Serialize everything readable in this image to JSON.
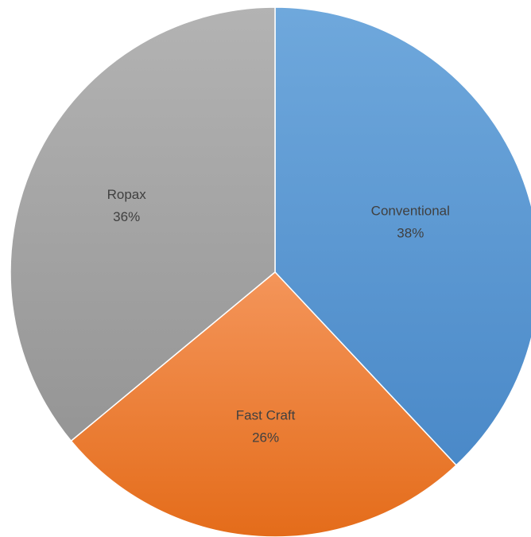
{
  "chart_data": {
    "type": "pie",
    "title": "",
    "legend": "none",
    "slices": [
      {
        "name": "Conventional",
        "value": 38,
        "label": "38%",
        "color": "#5b9bd5"
      },
      {
        "name": "Fast Craft",
        "value": 26,
        "label": "26%",
        "color": "#ed7d31"
      },
      {
        "name": "Ropax",
        "value": 36,
        "label": "36%",
        "color": "#a5a5a5"
      }
    ]
  }
}
